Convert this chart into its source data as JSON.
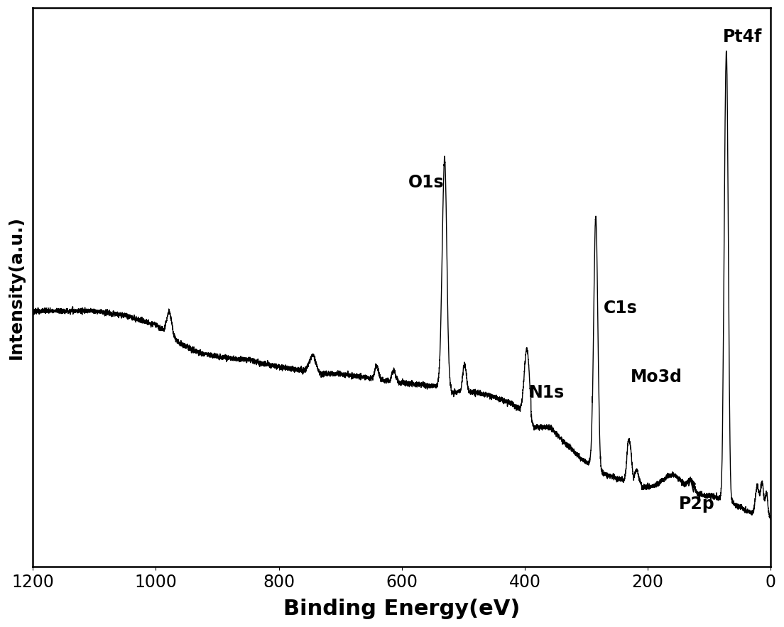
{
  "xlabel": "Binding Energy(eV)",
  "ylabel": "Intensity(a.u.)",
  "xlim": [
    1200,
    0
  ],
  "xticks": [
    1200,
    1000,
    800,
    600,
    400,
    200,
    0
  ],
  "line_color": "black",
  "line_width": 1.0,
  "background_color": "white",
  "xlabel_fontsize": 22,
  "ylabel_fontsize": 18,
  "tick_fontsize": 17,
  "xlabel_fontweight": "bold",
  "ylabel_fontweight": "bold"
}
